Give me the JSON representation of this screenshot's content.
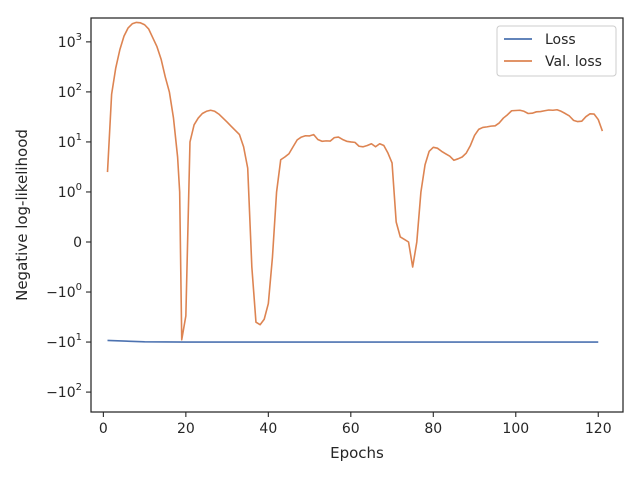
{
  "chart_data": {
    "type": "line",
    "xlabel": "Epochs",
    "ylabel": "Negative log-likelihood",
    "xlim": [
      -3,
      126
    ],
    "ylim": [
      -250,
      3000
    ],
    "yscale": "symlog",
    "linthresh": 1,
    "grid": false,
    "legend_position": "top-right",
    "x_ticks": [
      {
        "value": 0,
        "label": "0"
      },
      {
        "value": 20,
        "label": "20"
      },
      {
        "value": 40,
        "label": "40"
      },
      {
        "value": 60,
        "label": "60"
      },
      {
        "value": 80,
        "label": "80"
      },
      {
        "value": 100,
        "label": "100"
      },
      {
        "value": 120,
        "label": "120"
      }
    ],
    "y_ticks": [
      {
        "value": 1000,
        "base": "10",
        "exp": "3"
      },
      {
        "value": 100,
        "base": "10",
        "exp": "2"
      },
      {
        "value": 10,
        "base": "10",
        "exp": "1"
      },
      {
        "value": 1,
        "base": "10",
        "exp": "0"
      },
      {
        "value": 0,
        "base": "0",
        "exp": ""
      },
      {
        "value": -1,
        "base": "−10",
        "exp": "0"
      },
      {
        "value": -10,
        "base": "−10",
        "exp": "1"
      },
      {
        "value": -100,
        "base": "−10",
        "exp": "2"
      }
    ],
    "series": [
      {
        "name": "Loss",
        "color": "#4c72b0",
        "points": [
          [
            1,
            -9.3
          ],
          [
            10,
            -9.9
          ],
          [
            20,
            -10
          ],
          [
            60,
            -10
          ],
          [
            100,
            -10
          ],
          [
            120,
            -10
          ]
        ]
      },
      {
        "name": "Val. loss",
        "color": "#dd8452",
        "points": [
          [
            1,
            2.5
          ],
          [
            2,
            90
          ],
          [
            3,
            300
          ],
          [
            4,
            700
          ],
          [
            5,
            1300
          ],
          [
            6,
            1900
          ],
          [
            7,
            2300
          ],
          [
            8,
            2450
          ],
          [
            9,
            2400
          ],
          [
            10,
            2200
          ],
          [
            11,
            1800
          ],
          [
            12,
            1200
          ],
          [
            13,
            800
          ],
          [
            14,
            450
          ],
          [
            15,
            200
          ],
          [
            16,
            100
          ],
          [
            17,
            30
          ],
          [
            18,
            5
          ],
          [
            18.5,
            1
          ],
          [
            19,
            -9
          ],
          [
            20,
            -3
          ],
          [
            21,
            10
          ],
          [
            22,
            22
          ],
          [
            23,
            30
          ],
          [
            24,
            37
          ],
          [
            25,
            41
          ],
          [
            26,
            43
          ],
          [
            27,
            41
          ],
          [
            28,
            36
          ],
          [
            29,
            30
          ],
          [
            30,
            25
          ],
          [
            31,
            20.5
          ],
          [
            32,
            17
          ],
          [
            33,
            14
          ],
          [
            34,
            8
          ],
          [
            35,
            3
          ],
          [
            36,
            -0.5
          ],
          [
            37,
            -4
          ],
          [
            38,
            -4.5
          ],
          [
            39,
            -3.5
          ],
          [
            40,
            -1.7
          ],
          [
            41,
            -0.3
          ],
          [
            42,
            1
          ],
          [
            43,
            4.4
          ],
          [
            44,
            5
          ],
          [
            45,
            5.8
          ],
          [
            46,
            8
          ],
          [
            47,
            11
          ],
          [
            48,
            12.5
          ],
          [
            49,
            13.3
          ],
          [
            50,
            13.2
          ],
          [
            51,
            14
          ],
          [
            52,
            11.2
          ],
          [
            53,
            10.3
          ],
          [
            54,
            10.5
          ],
          [
            55,
            10.4
          ],
          [
            56,
            12.2
          ],
          [
            57,
            12.5
          ],
          [
            58,
            11.2
          ],
          [
            59,
            10.3
          ],
          [
            60,
            10
          ],
          [
            61,
            9.8
          ],
          [
            62,
            8.2
          ],
          [
            63,
            8
          ],
          [
            64,
            8.5
          ],
          [
            65,
            9.2
          ],
          [
            66,
            8
          ],
          [
            67,
            9.2
          ],
          [
            68,
            8.5
          ],
          [
            69,
            6
          ],
          [
            70,
            3.8
          ],
          [
            71,
            0.4
          ],
          [
            72,
            0.1
          ],
          [
            73,
            0.05
          ],
          [
            74,
            0
          ],
          [
            75,
            -0.5
          ],
          [
            76,
            0
          ],
          [
            77,
            1
          ],
          [
            78,
            3.5
          ],
          [
            79,
            6.5
          ],
          [
            80,
            7.8
          ],
          [
            81,
            7.5
          ],
          [
            82,
            6.5
          ],
          [
            83,
            5.8
          ],
          [
            84,
            5.2
          ],
          [
            85,
            4.3
          ],
          [
            86,
            4.6
          ],
          [
            87,
            5
          ],
          [
            88,
            6
          ],
          [
            89,
            8.5
          ],
          [
            90,
            13.5
          ],
          [
            91,
            17.8
          ],
          [
            92,
            19.5
          ],
          [
            93,
            20
          ],
          [
            94,
            20.7
          ],
          [
            95,
            21
          ],
          [
            96,
            24
          ],
          [
            97,
            30
          ],
          [
            98,
            35
          ],
          [
            99,
            42
          ],
          [
            100,
            42.5
          ],
          [
            101,
            43
          ],
          [
            102,
            41
          ],
          [
            103,
            37
          ],
          [
            104,
            37.5
          ],
          [
            105,
            40
          ],
          [
            106,
            40.5
          ],
          [
            107,
            42
          ],
          [
            108,
            43.5
          ],
          [
            109,
            43
          ],
          [
            110,
            44
          ],
          [
            111,
            41
          ],
          [
            112,
            37
          ],
          [
            113,
            33
          ],
          [
            114,
            27
          ],
          [
            115,
            25.5
          ],
          [
            116,
            26
          ],
          [
            117,
            32
          ],
          [
            118,
            36.5
          ],
          [
            119,
            36
          ],
          [
            120,
            28
          ],
          [
            121,
            16.5
          ]
        ]
      }
    ]
  }
}
